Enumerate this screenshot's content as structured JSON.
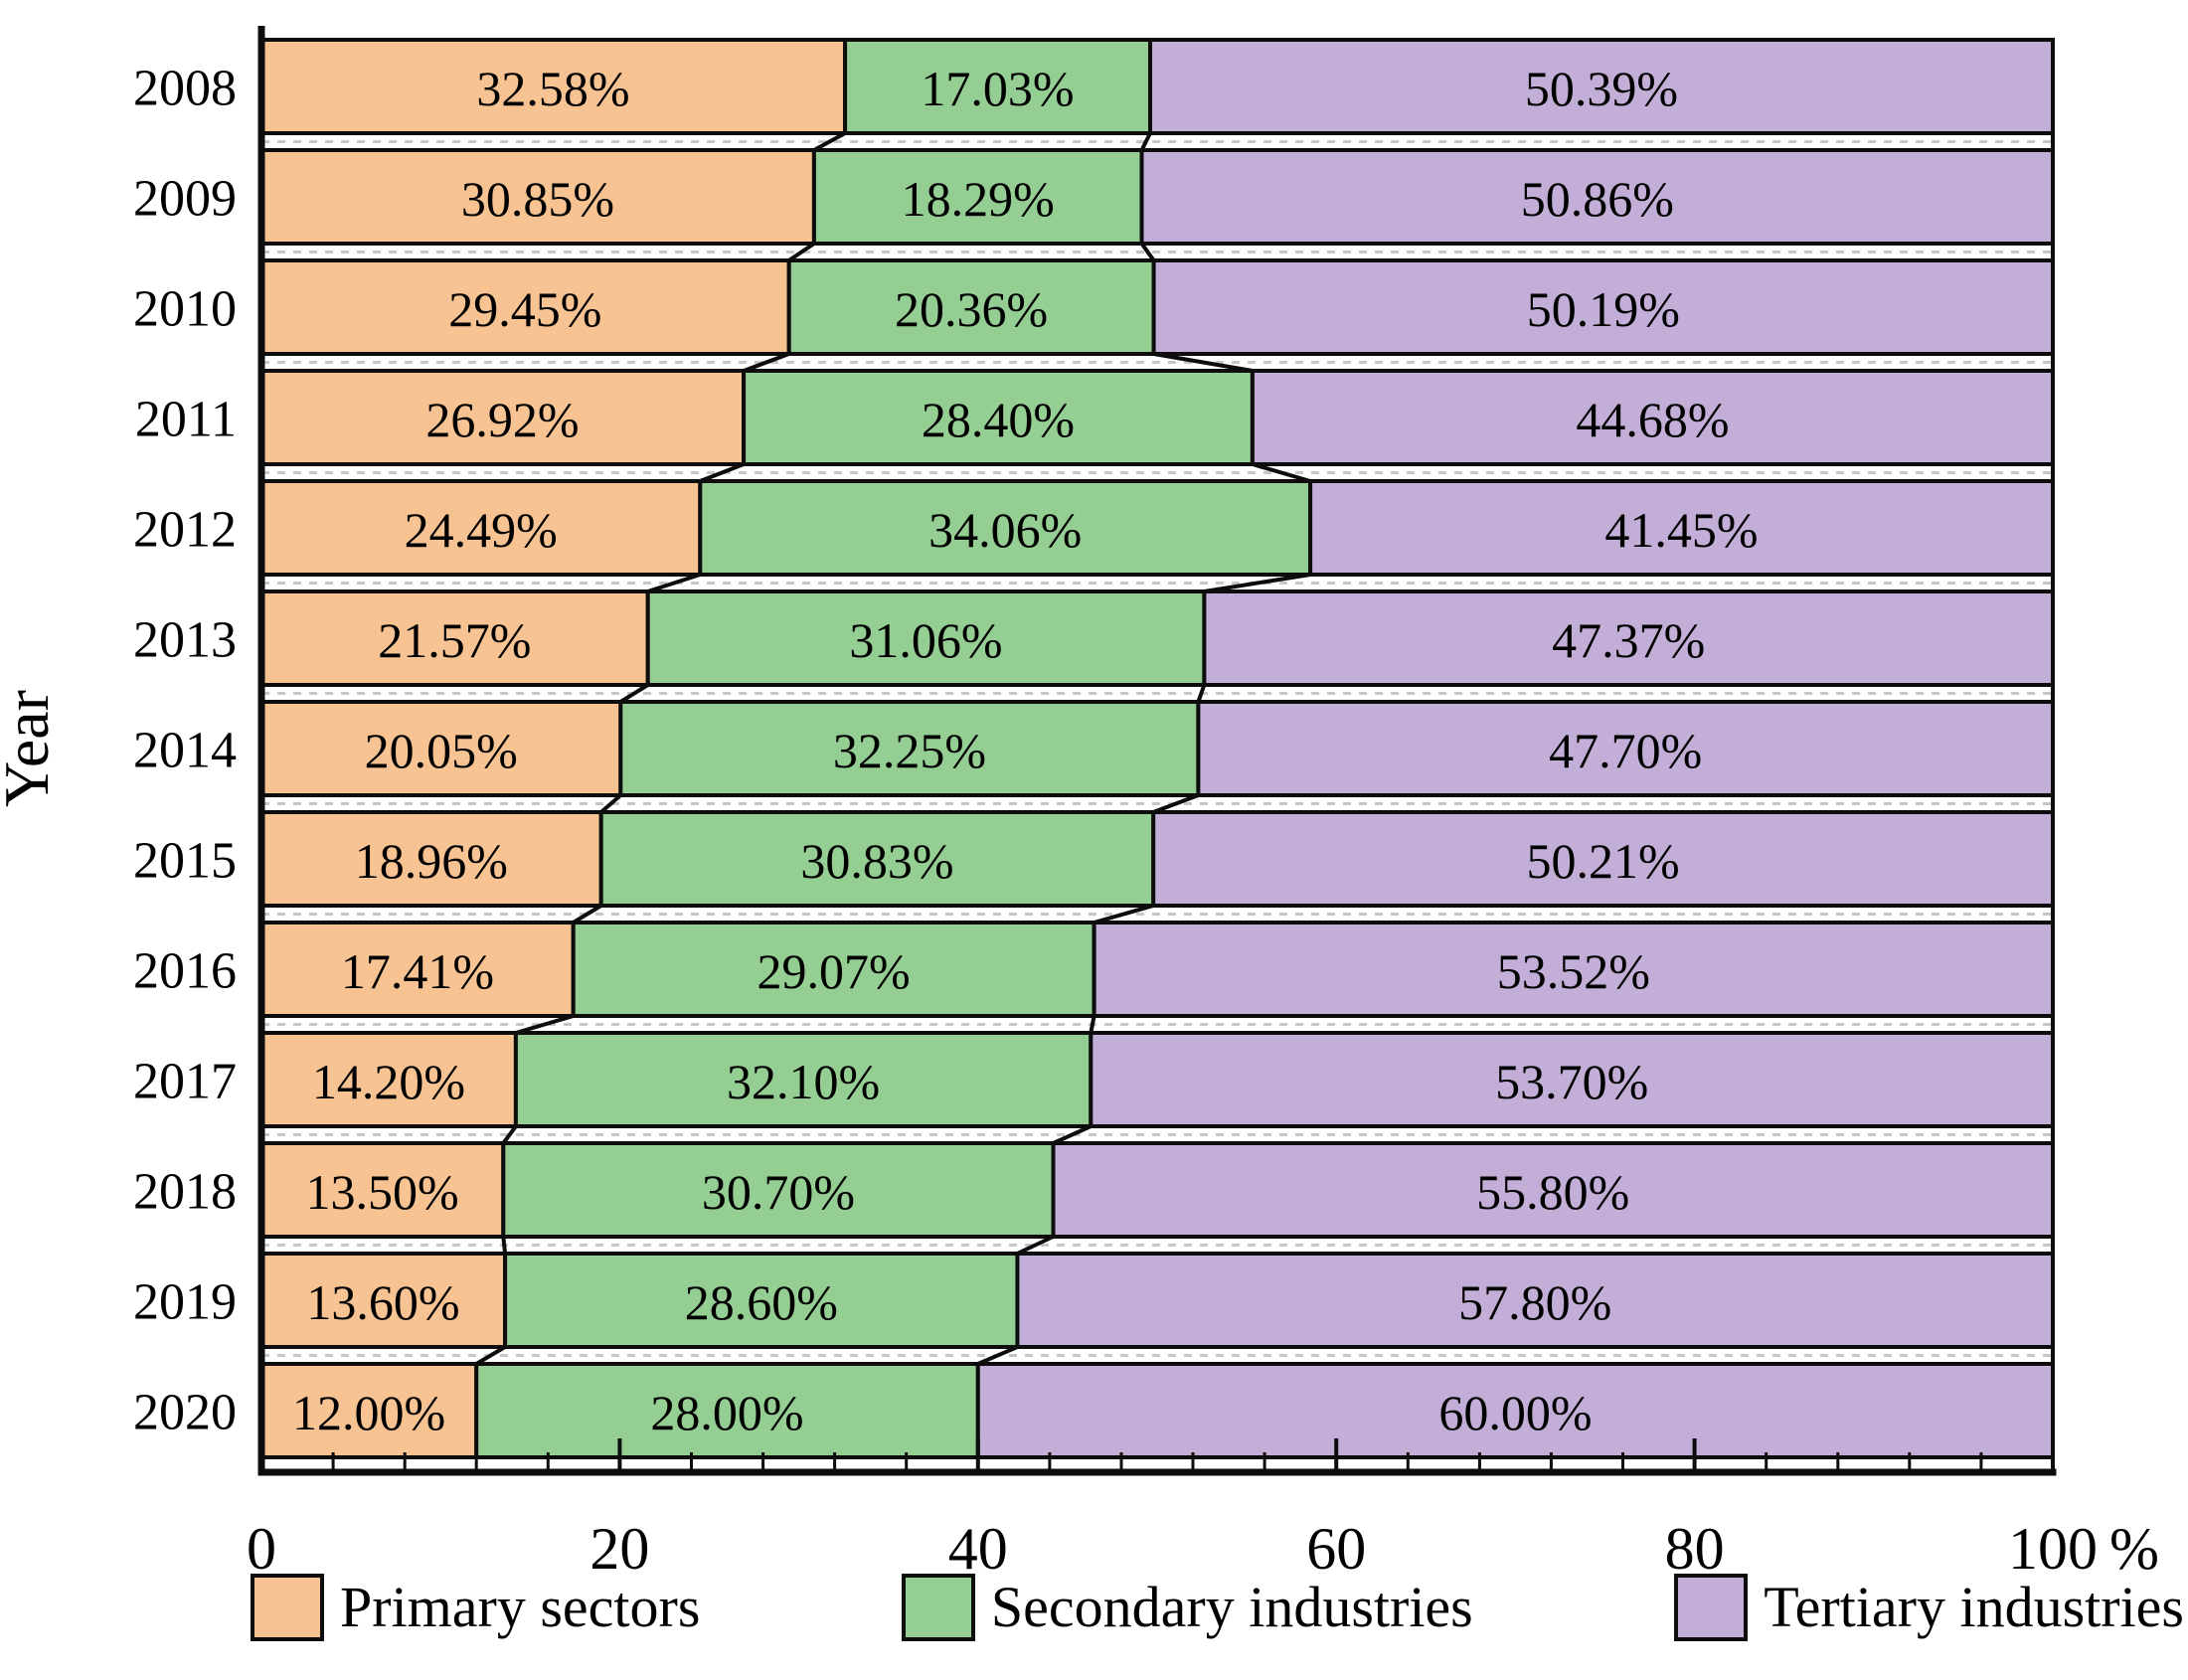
{
  "figure": {
    "background": "#ffffff",
    "border_color": "#0d0d0d",
    "grid_color": "#c6c6c6"
  },
  "axes": {
    "y_title": "Year",
    "x_tick_labels": [
      "0",
      "20",
      "40",
      "60",
      "80",
      "100"
    ],
    "x_major_ticks": [
      0,
      20,
      40,
      60,
      80,
      100
    ],
    "x_minor_step": 4,
    "x_unit_label": "%",
    "xlim": [
      0,
      100
    ]
  },
  "legend": {
    "items": [
      {
        "label": "Primary sectors",
        "color": "#F7C392"
      },
      {
        "label": "Secondary industries",
        "color": "#95CE93"
      },
      {
        "label": "Tertiary industries",
        "color": "#C2AED6"
      }
    ]
  },
  "chart_data": {
    "type": "bar",
    "subtype": "horizontal-stacked",
    "title": "",
    "xlabel": "%",
    "ylabel": "Year",
    "xlim": [
      0,
      100
    ],
    "grid": "dashed horizontal line between bars",
    "legend_position": "bottom",
    "categories": [
      "2008",
      "2009",
      "2010",
      "2011",
      "2012",
      "2013",
      "2014",
      "2015",
      "2016",
      "2017",
      "2018",
      "2019",
      "2020"
    ],
    "series": [
      {
        "name": "Primary sectors",
        "color": "#F7C392",
        "values": [
          32.58,
          30.85,
          29.45,
          26.92,
          24.49,
          21.57,
          20.05,
          18.96,
          17.41,
          14.2,
          13.5,
          13.6,
          12.0
        ],
        "labels": [
          "32.58%",
          "30.85%",
          "29.45%",
          "26.92%",
          "24.49%",
          "21.57%",
          "20.05%",
          "18.96%",
          "17.41%",
          "14.20%",
          "13.50%",
          "13.60%",
          "12.00%"
        ]
      },
      {
        "name": "Secondary industries",
        "color": "#95CE93",
        "values": [
          17.03,
          18.29,
          20.36,
          28.4,
          34.06,
          31.06,
          32.25,
          30.83,
          29.07,
          32.1,
          30.7,
          28.6,
          28.0
        ],
        "labels": [
          "17.03%",
          "18.29%",
          "20.36%",
          "28.40%",
          "34.06%",
          "31.06%",
          "32.25%",
          "30.83%",
          "29.07%",
          "32.10%",
          "30.70%",
          "28.60%",
          "28.00%"
        ]
      },
      {
        "name": "Tertiary industries",
        "color": "#C2AED6",
        "values": [
          50.39,
          50.86,
          50.19,
          44.68,
          41.45,
          47.37,
          47.7,
          50.21,
          53.52,
          53.7,
          55.8,
          57.8,
          60.0
        ],
        "labels": [
          "50.39%",
          "50.86%",
          "50.19%",
          "44.68%",
          "41.45%",
          "47.37%",
          "47.70%",
          "50.21%",
          "53.52%",
          "53.70%",
          "55.80%",
          "57.80%",
          "60.00%"
        ]
      }
    ]
  }
}
